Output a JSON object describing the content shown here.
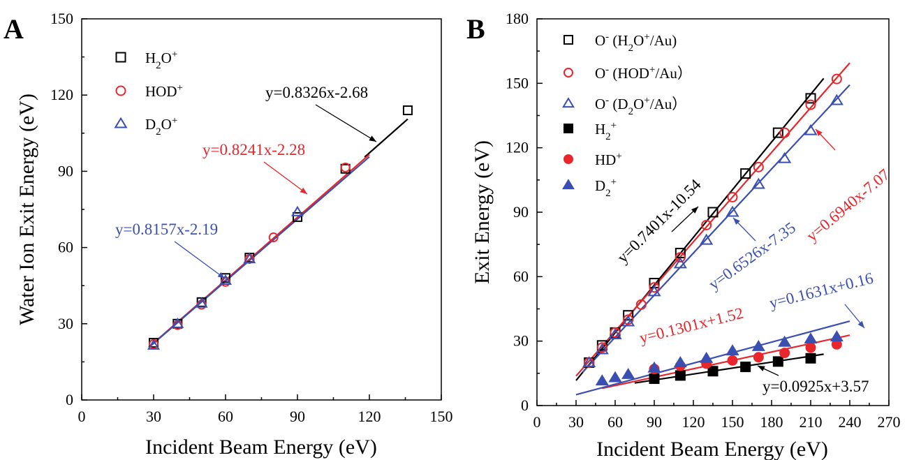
{
  "chart_data": [
    {
      "panel_label": "A",
      "type": "scatter",
      "xlabel": "Incident Beam Energy (eV)",
      "ylabel": "Water Ion Exit Energy (eV)",
      "xlim": [
        0,
        150
      ],
      "ylim": [
        0,
        150
      ],
      "xticks": [
        "0",
        "30",
        "60",
        "90",
        "120",
        "150"
      ],
      "yticks": [
        "0",
        "30",
        "60",
        "90",
        "120",
        "150"
      ],
      "legend": "top-left",
      "series": [
        {
          "name": "H2O+",
          "legend_main": "H",
          "legend_sub": "2",
          "legend_tail": "O",
          "legend_sup": "+",
          "color": "#000000",
          "marker": "square",
          "x": [
            30,
            40,
            50,
            60,
            70,
            90,
            110,
            136
          ],
          "y": [
            22.5,
            30,
            38.5,
            48,
            56,
            72,
            91,
            114
          ]
        },
        {
          "name": "HOD+",
          "legend_main": "HOD",
          "legend_sub": "",
          "legend_tail": "",
          "legend_sup": "+",
          "color": "#e8262b",
          "marker": "circle",
          "x": [
            30,
            40,
            50,
            60,
            70,
            80,
            110
          ],
          "y": [
            22,
            29.5,
            37.5,
            46.5,
            55.5,
            64,
            91.5
          ]
        },
        {
          "name": "D2O+",
          "legend_main": "D",
          "legend_sub": "2",
          "legend_tail": "O",
          "legend_sup": "+",
          "color": "#3a4fb0",
          "marker": "triangle",
          "x": [
            30,
            40,
            50,
            60,
            70,
            90
          ],
          "y": [
            21.5,
            30,
            38,
            47,
            55.5,
            74
          ]
        }
      ],
      "fits": [
        {
          "label": "y=0.8326x-2.68",
          "slope": 0.8326,
          "intercept": -2.68,
          "x": [
            118,
            136
          ],
          "color": "#000000"
        },
        {
          "label": "y=0.8241x-2.28",
          "slope": 0.8241,
          "intercept": -2.28,
          "x": [
            28,
            120
          ],
          "color": "#e8262b"
        },
        {
          "label": "y=0.8157x-2.19",
          "slope": 0.8157,
          "intercept": -2.19,
          "x": [
            28,
            120
          ],
          "color": "#3a4fb0"
        }
      ]
    },
    {
      "panel_label": "B",
      "type": "scatter",
      "xlabel": "Incident Beam Energy (eV)",
      "ylabel": "Exit Energy (eV)",
      "xlim": [
        0,
        270
      ],
      "ylim": [
        0,
        180
      ],
      "xticks": [
        "0",
        "30",
        "60",
        "90",
        "120",
        "150",
        "180",
        "210",
        "240",
        "270"
      ],
      "yticks": [
        "0",
        "30",
        "60",
        "90",
        "120",
        "150",
        "180"
      ],
      "legend": "top-left",
      "series": [
        {
          "name": "O- (H2O+/Au)",
          "color": "#000000",
          "marker": "square",
          "x": [
            40,
            50,
            60,
            70,
            90,
            110,
            135,
            160,
            185,
            210
          ],
          "y": [
            20,
            28,
            34,
            42,
            57,
            71,
            90,
            108,
            127,
            143
          ]
        },
        {
          "name": "O- (HOD+/Au)",
          "color": "#e8262b",
          "marker": "circle",
          "x": [
            40,
            50,
            60,
            70,
            80,
            90,
            110,
            130,
            150,
            170,
            190,
            210,
            230
          ],
          "y": [
            20,
            27,
            34,
            40,
            47,
            55,
            69,
            84,
            97,
            111,
            127,
            140,
            152
          ]
        },
        {
          "name": "O- (D2O+/Au)",
          "color": "#3a4fb0",
          "marker": "triangle",
          "x": [
            40,
            50,
            60,
            70,
            90,
            110,
            130,
            150,
            170,
            190,
            210,
            230
          ],
          "y": [
            20,
            26,
            33,
            39,
            53,
            66,
            77,
            90,
            103,
            115,
            128,
            142
          ]
        },
        {
          "name": "H2+",
          "color": "#000000",
          "marker": "square-filled",
          "x": [
            90,
            110,
            135,
            160,
            185,
            210
          ],
          "y": [
            12.5,
            14,
            16,
            18,
            20.5,
            22
          ]
        },
        {
          "name": "HD+",
          "color": "#e8262b",
          "marker": "circle-filled",
          "x": [
            90,
            110,
            130,
            150,
            170,
            190,
            210,
            230
          ],
          "y": [
            17,
            18.5,
            19.5,
            21,
            22.5,
            24.5,
            27,
            28.5
          ]
        },
        {
          "name": "D2+",
          "color": "#3a4fb0",
          "marker": "triangle-filled",
          "x": [
            50,
            60,
            70,
            90,
            110,
            130,
            150,
            170,
            190,
            210,
            230
          ],
          "y": [
            11.5,
            13,
            14.5,
            17.5,
            20,
            22,
            25.5,
            27.5,
            29.5,
            31,
            32
          ]
        }
      ],
      "legend_items": [
        {
          "main": "O",
          "sup1": "-",
          "rest": [
            [
              "(H",
              ""
            ],
            [
              "2",
              "sub"
            ],
            [
              "O",
              ""
            ],
            [
              "+",
              "sup"
            ],
            [
              "/Au)",
              ""
            ]
          ],
          "color": "#000000",
          "marker": "square"
        },
        {
          "main": "O",
          "sup1": "-",
          "rest": [
            [
              "(HOD",
              ""
            ],
            [
              "+",
              "sup"
            ],
            [
              "/Au）",
              ""
            ]
          ],
          "color": "#e8262b",
          "marker": "circle"
        },
        {
          "main": "O",
          "sup1": "-",
          "rest": [
            [
              "(D",
              ""
            ],
            [
              "2",
              "sub"
            ],
            [
              "O",
              ""
            ],
            [
              "+",
              "sup"
            ],
            [
              "/Au）",
              ""
            ]
          ],
          "color": "#3a4fb0",
          "marker": "triangle"
        },
        {
          "main": "H",
          "sup1": "",
          "rest": [
            [
              "2",
              "sub"
            ],
            [
              "+",
              "sup"
            ]
          ],
          "color": "#000000",
          "marker": "square-filled"
        },
        {
          "main": "HD",
          "sup1": "",
          "rest": [
            [
              "+",
              "sup"
            ]
          ],
          "color": "#e8262b",
          "marker": "circle-filled"
        },
        {
          "main": "D",
          "sup1": "",
          "rest": [
            [
              "2",
              "sub"
            ],
            [
              "+",
              "sup"
            ]
          ],
          "color": "#3a4fb0",
          "marker": "triangle-filled"
        }
      ],
      "fits": [
        {
          "label": "y=0.7401x-10.54",
          "slope": 0.7401,
          "intercept": -10.54,
          "x": [
            30,
            220
          ],
          "color": "#000000"
        },
        {
          "label": "y=0.6940x-7.07",
          "slope": 0.694,
          "intercept": -7.07,
          "x": [
            30,
            240
          ],
          "color": "#e8262b"
        },
        {
          "label": "y=0.6526x-7.35",
          "slope": 0.6526,
          "intercept": -7.35,
          "x": [
            35,
            240
          ],
          "color": "#3a4fb0"
        },
        {
          "label": "y=0.0925x+3.57",
          "slope": 0.0925,
          "intercept": 3.57,
          "x": [
            75,
            220
          ],
          "color": "#000000"
        },
        {
          "label": "y=0.1301x+1.52",
          "slope": 0.1301,
          "intercept": 1.52,
          "x": [
            50,
            240
          ],
          "color": "#e8262b"
        },
        {
          "label": "y=0.1631x+0.16",
          "slope": 0.1631,
          "intercept": 0.16,
          "x": [
            30,
            240
          ],
          "color": "#3a4fb0"
        }
      ]
    }
  ]
}
